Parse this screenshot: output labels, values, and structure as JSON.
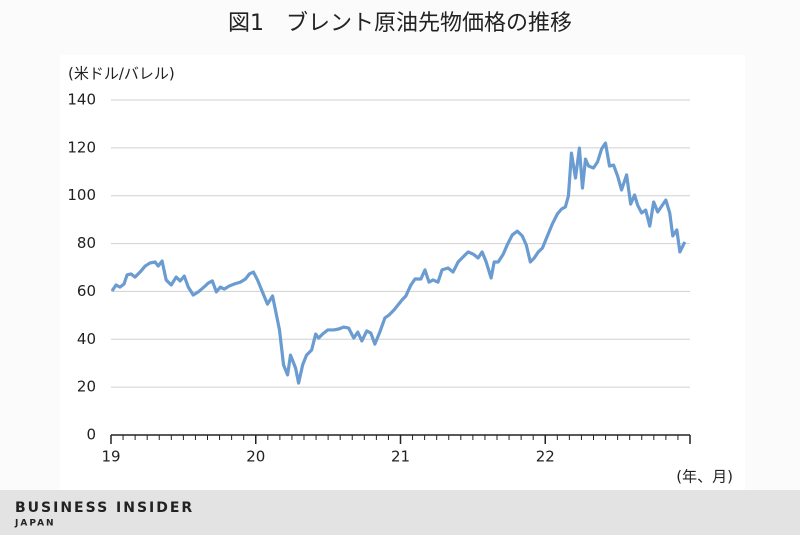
{
  "chart_data": {
    "type": "line",
    "title": "図1　ブレント原油先物価格の推移",
    "y_label": "(米ドル/バレル)",
    "x_label": "(年、月)",
    "x": [
      19.007,
      19.035,
      19.062,
      19.09,
      19.111,
      19.139,
      19.166,
      19.201,
      19.236,
      19.27,
      19.305,
      19.326,
      19.353,
      19.381,
      19.416,
      19.45,
      19.478,
      19.506,
      19.534,
      19.568,
      19.603,
      19.651,
      19.672,
      19.7,
      19.728,
      19.755,
      19.783,
      19.818,
      19.852,
      19.894,
      19.929,
      19.956,
      19.984,
      20.012,
      20.046,
      20.081,
      20.116,
      20.136,
      20.164,
      20.192,
      20.22,
      20.24,
      20.275,
      20.296,
      20.324,
      20.351,
      20.386,
      20.414,
      20.434,
      20.462,
      20.497,
      20.538,
      20.573,
      20.607,
      20.642,
      20.677,
      20.705,
      20.733,
      20.767,
      20.795,
      20.823,
      20.857,
      20.892,
      20.92,
      20.954,
      20.982,
      21.01,
      21.037,
      21.072,
      21.1,
      21.141,
      21.169,
      21.197,
      21.225,
      21.259,
      21.287,
      21.328,
      21.363,
      21.398,
      21.432,
      21.467,
      21.502,
      21.536,
      21.564,
      21.592,
      21.626,
      21.647,
      21.675,
      21.71,
      21.737,
      21.772,
      21.807,
      21.841,
      21.869,
      21.897,
      21.924,
      21.952,
      21.98,
      22.015,
      22.049,
      22.084,
      22.112,
      22.139,
      22.16,
      22.181,
      22.209,
      22.236,
      22.257,
      22.278,
      22.299,
      22.333,
      22.361,
      22.389,
      22.416,
      22.444,
      22.472,
      22.5,
      22.527,
      22.562,
      22.59,
      22.617,
      22.638,
      22.666,
      22.694,
      22.722,
      22.749,
      22.777,
      22.805,
      22.833,
      22.86,
      22.881,
      22.909,
      22.93,
      22.964
    ],
    "series": [
      {
        "name": "Brent",
        "color": "#6a9bd1",
        "values": [
          60.2,
          62.7,
          61.8,
          63.1,
          66.9,
          67.3,
          66.0,
          68.1,
          70.6,
          71.9,
          72.3,
          70.6,
          72.7,
          64.8,
          62.7,
          66.0,
          64.4,
          66.4,
          61.8,
          58.5,
          59.8,
          62.3,
          63.5,
          64.4,
          59.8,
          61.8,
          61.0,
          62.3,
          63.1,
          63.9,
          65.2,
          67.3,
          68.1,
          64.8,
          59.8,
          54.7,
          58.1,
          52.2,
          43.9,
          29.3,
          25.1,
          33.4,
          28.0,
          21.7,
          29.3,
          33.4,
          35.5,
          42.2,
          40.5,
          42.2,
          43.9,
          43.9,
          44.3,
          45.1,
          44.7,
          40.5,
          43.0,
          39.3,
          43.5,
          42.6,
          38.0,
          43.0,
          48.9,
          50.1,
          52.2,
          54.3,
          56.4,
          58.1,
          62.7,
          65.2,
          65.2,
          69.0,
          63.9,
          64.8,
          63.9,
          69.0,
          69.8,
          68.1,
          72.3,
          74.4,
          76.5,
          75.6,
          74.0,
          76.5,
          72.3,
          65.6,
          72.3,
          72.3,
          75.6,
          79.4,
          83.6,
          85.2,
          83.2,
          79.4,
          72.3,
          74.0,
          76.5,
          78.1,
          83.2,
          88.2,
          92.4,
          94.4,
          95.3,
          99.9,
          117.8,
          107.4,
          119.9,
          103.2,
          115.3,
          112.4,
          111.6,
          114.1,
          119.5,
          122.0,
          112.4,
          112.8,
          108.2,
          102.4,
          108.7,
          96.5,
          100.3,
          96.1,
          92.8,
          94.0,
          87.3,
          97.4,
          93.2,
          95.7,
          98.2,
          92.8,
          83.2,
          85.7,
          76.5,
          80.7
        ]
      }
    ],
    "xlim": [
      19,
      23
    ],
    "xticks": [
      19,
      20,
      21,
      22
    ],
    "ylim": [
      0,
      140
    ],
    "yticks": [
      0,
      20,
      40,
      60,
      80,
      100,
      120,
      140
    ],
    "grid": true
  },
  "footer": {
    "brand": "BUSINESS INSIDER",
    "region": "JAPAN"
  }
}
